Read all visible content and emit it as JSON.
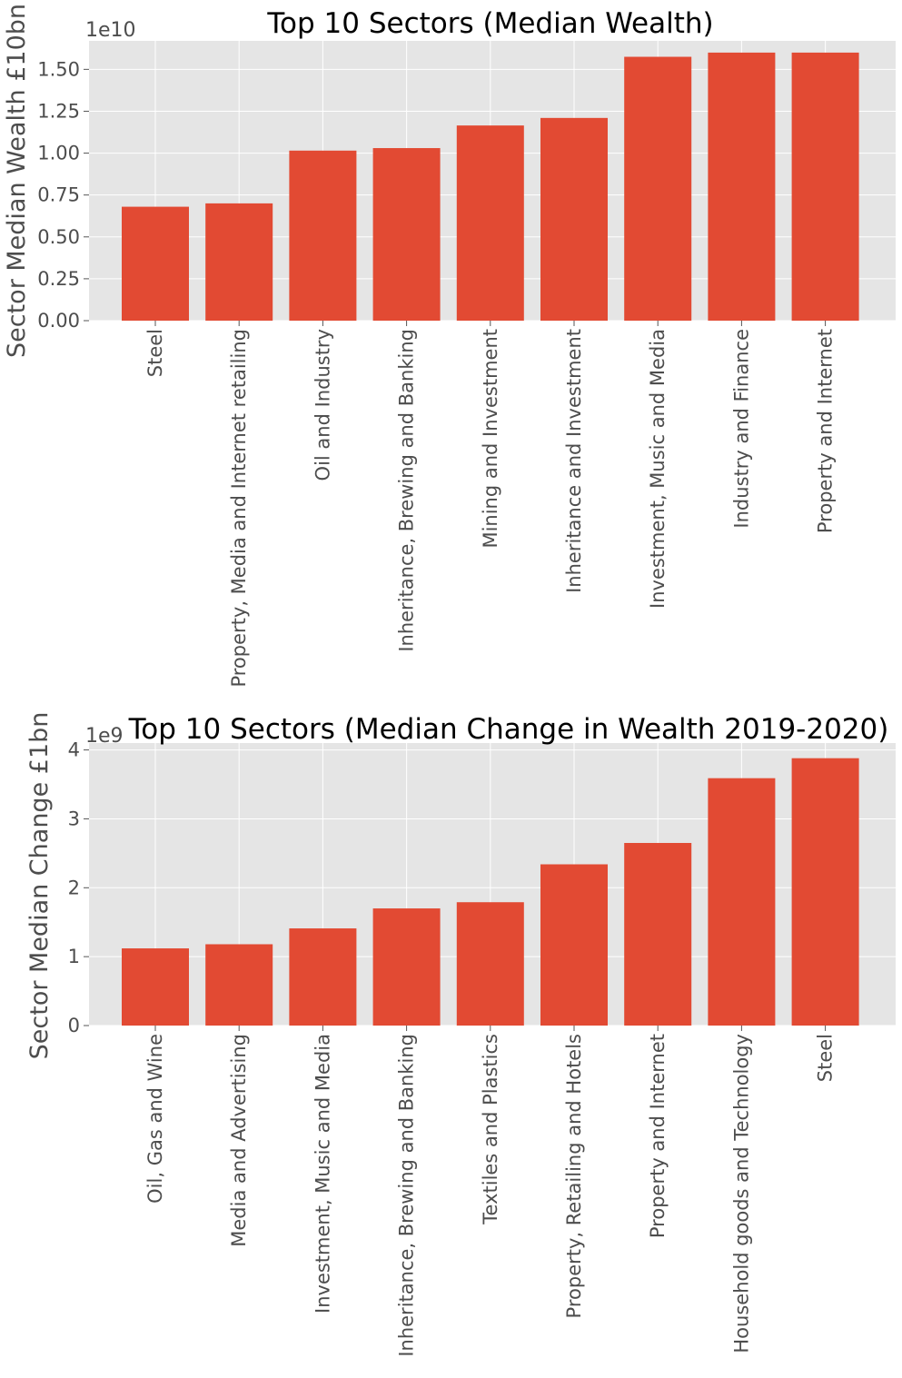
{
  "chart_data": [
    {
      "type": "bar",
      "title": "Top 10 Sectors (Median Wealth)",
      "xlabel": "",
      "ylabel": "Sector Median Wealth £10bn",
      "offset_label": "1e10",
      "ylim": [
        0,
        1.67
      ],
      "yticks": [
        0.0,
        0.25,
        0.5,
        0.75,
        1.0,
        1.25,
        1.5
      ],
      "ytick_labels": [
        "0.00",
        "0.25",
        "0.50",
        "0.75",
        "1.00",
        "1.25",
        "1.50"
      ],
      "grid": true,
      "bar_color": "#E24A33",
      "categories": [
        "Steel",
        "Property, Media and Internet retailing",
        "Oil and Industry",
        "Inheritance, Brewing and Banking",
        "Mining and Investment",
        "Inheritance and Investment",
        "Investment, Music and Media",
        "Industry and Finance",
        "Property and Internet"
      ],
      "values": [
        0.68,
        0.7,
        1.015,
        1.03,
        1.165,
        1.21,
        1.575,
        1.6,
        1.6
      ]
    },
    {
      "type": "bar",
      "title": "Top 10 Sectors (Median Change in Wealth 2019-2020)",
      "xlabel": "",
      "ylabel": "Sector Median Change £1bn",
      "offset_label": "1e9",
      "ylim": [
        0,
        4.1
      ],
      "yticks": [
        0,
        1,
        2,
        3,
        4
      ],
      "ytick_labels": [
        "0",
        "1",
        "2",
        "3",
        "4"
      ],
      "grid": true,
      "bar_color": "#E24A33",
      "categories": [
        "Oil, Gas and Wine",
        "Media and Advertising",
        "Investment, Music and Media",
        "Inheritance, Brewing and Banking",
        "Textiles and Plastics",
        "Property, Retailing and Hotels",
        "Property and Internet",
        "Household goods and Technology",
        "Steel"
      ],
      "values": [
        1.12,
        1.18,
        1.41,
        1.7,
        1.79,
        2.34,
        2.65,
        3.59,
        3.88
      ]
    }
  ]
}
